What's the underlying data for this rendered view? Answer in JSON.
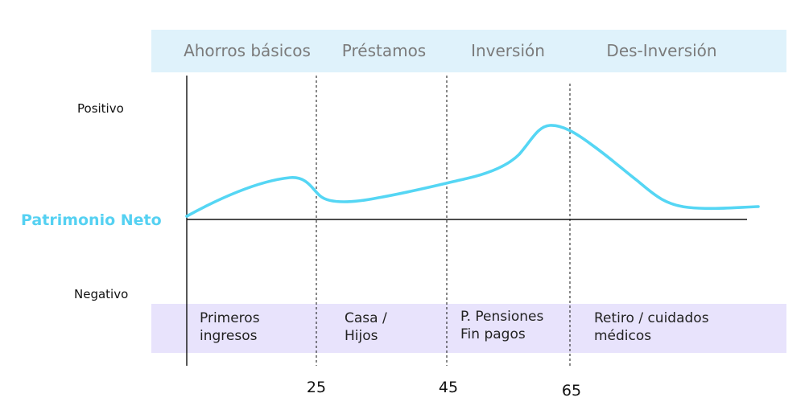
{
  "colors": {
    "curve": "#55d6f4",
    "net_worth_label": "#55d1f2",
    "phase_band": "#dff2fb",
    "event_band": "#e8e3fc",
    "phase_text": "#7b7b7b"
  },
  "phases": [
    {
      "label": "Ahorros básicos"
    },
    {
      "label": "Préstamos"
    },
    {
      "label": "Inversión"
    },
    {
      "label": "Des-Inversión"
    }
  ],
  "events": [
    {
      "line1": "Primeros",
      "line2": "ingresos"
    },
    {
      "line1": "Casa /",
      "line2": "Hijos"
    },
    {
      "line1": "P. Pensiones",
      "line2": "Fin pagos"
    },
    {
      "line1": "Retiro / cuidados",
      "line2": "médicos"
    }
  ],
  "y_axis": {
    "positive_label": "Positivo",
    "negative_label": "Negativo",
    "zero_label": "Patrimonio Neto"
  },
  "ages": [
    {
      "label": "25"
    },
    {
      "label": "45"
    },
    {
      "label": "65"
    }
  ]
}
